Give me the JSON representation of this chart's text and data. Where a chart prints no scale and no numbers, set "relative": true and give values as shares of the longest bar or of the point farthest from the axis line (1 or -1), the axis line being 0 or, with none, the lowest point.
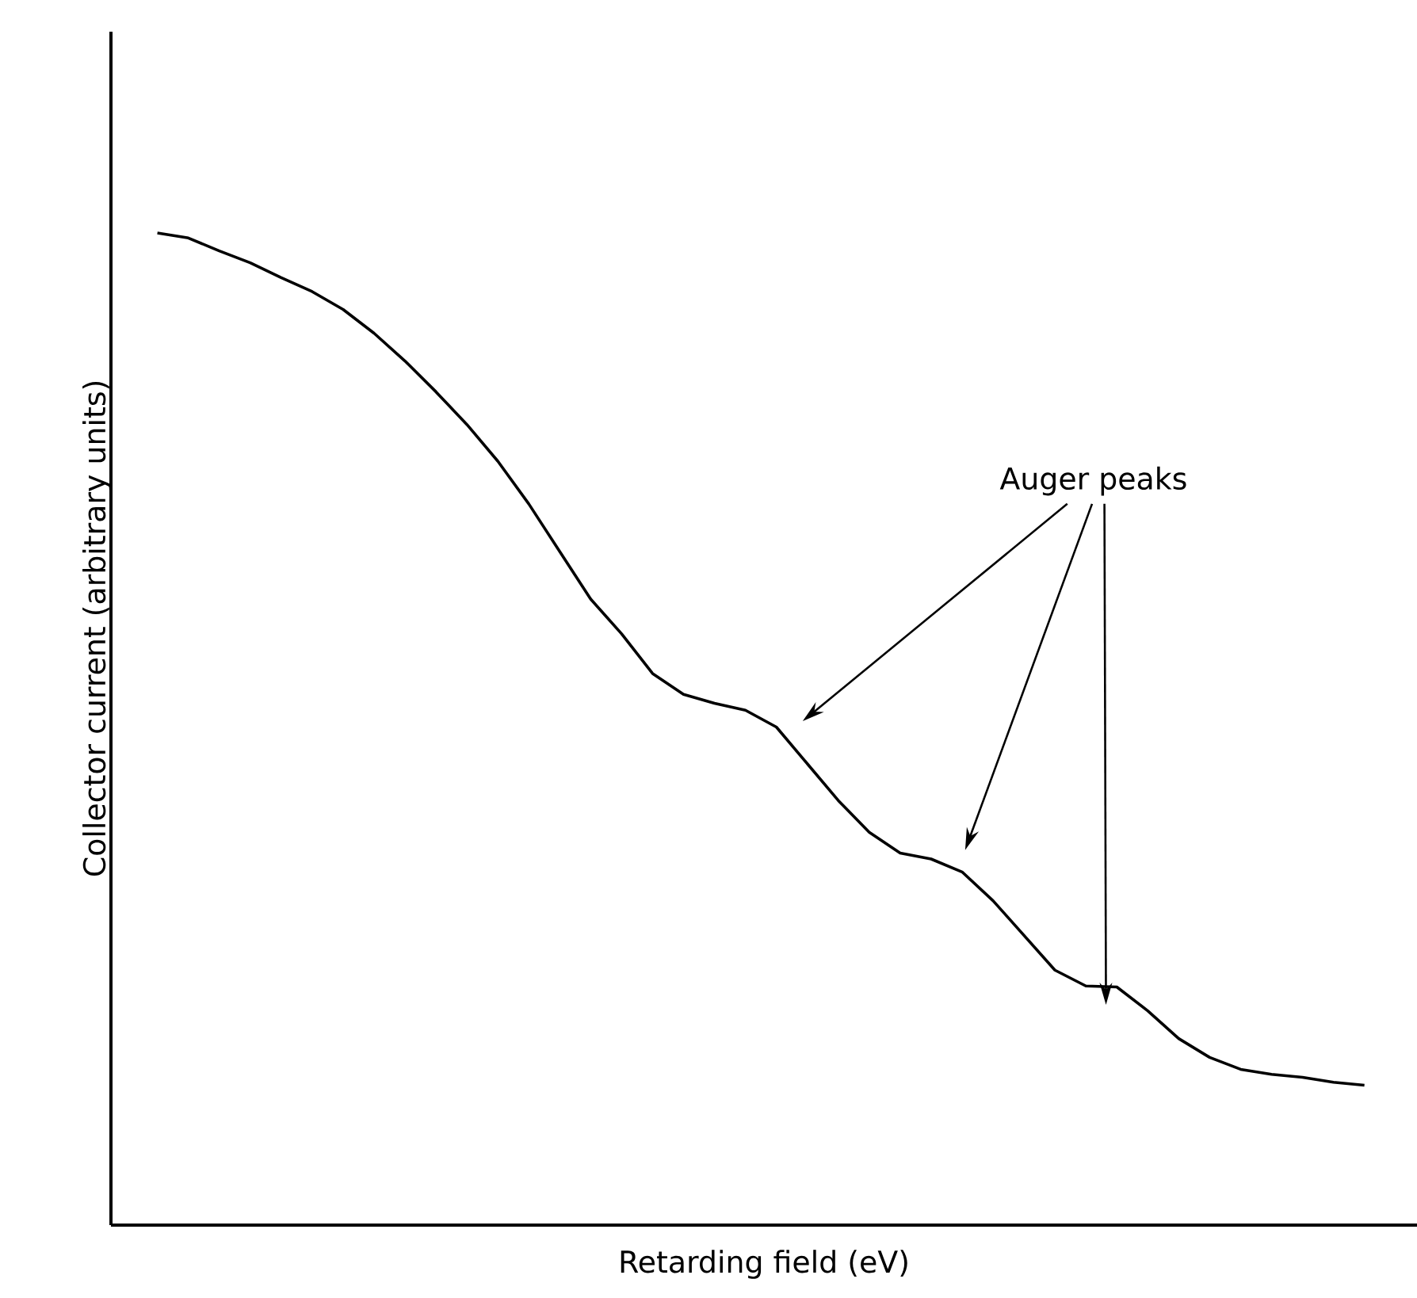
{
  "chart_data": {
    "type": "line",
    "relative": true,
    "xlabel": "Retarding field (eV)",
    "ylabel": "Collector current (arbitrary units)",
    "annotations": [
      "Auger peaks"
    ],
    "categories": [
      null,
      null,
      null,
      null,
      null,
      null,
      null,
      null,
      null,
      null,
      null,
      null,
      null,
      null,
      null,
      null,
      null,
      null,
      null,
      null,
      null,
      null,
      null,
      null,
      null,
      null,
      null,
      null,
      null,
      null,
      null,
      null,
      null,
      null,
      null,
      null,
      null,
      null,
      null,
      null
    ],
    "color": "#000000",
    "values": [
      1.0,
      0.995,
      0.982,
      0.97,
      0.955,
      0.941,
      0.923,
      0.899,
      0.871,
      0.84,
      0.807,
      0.77,
      0.727,
      0.679,
      0.631,
      0.596,
      0.556,
      0.535,
      0.526,
      0.519,
      0.502,
      0.465,
      0.428,
      0.396,
      0.375,
      0.369,
      0.356,
      0.327,
      0.292,
      0.257,
      0.241,
      0.24,
      0.216,
      0.188,
      0.169,
      0.157,
      0.152,
      0.149,
      0.144,
      0.141
    ]
  }
}
